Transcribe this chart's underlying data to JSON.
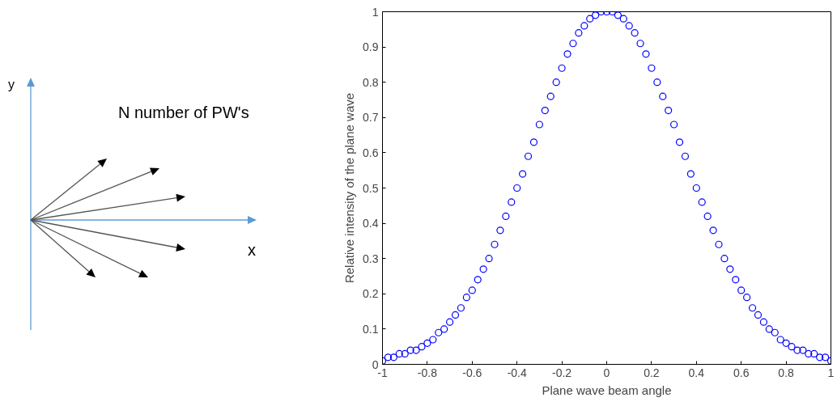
{
  "chart_data": [
    {
      "type": "other",
      "annotations": [
        "y",
        "N number of PW's",
        "x"
      ]
    },
    {
      "type": "scatter",
      "xlabel": "Plane wave beam angle",
      "ylabel": "Relative intensity of the plane wave",
      "marker": "circle",
      "grid": false,
      "xlim": [
        -1,
        1
      ],
      "ylim": [
        0,
        1
      ],
      "xticks": [
        -1,
        -0.8,
        -0.6,
        -0.4,
        -0.2,
        0,
        0.2,
        0.4,
        0.6,
        0.8,
        1
      ],
      "yticks": [
        0,
        0.1,
        0.2,
        0.3,
        0.4,
        0.5,
        0.6,
        0.7,
        0.8,
        0.9,
        1
      ],
      "series": [
        {
          "color": "#0000ff",
          "x": [
            -1,
            -0.975,
            -0.95,
            -0.925,
            -0.9,
            -0.875,
            -0.85,
            -0.825,
            -0.8,
            -0.775,
            -0.75,
            -0.725,
            -0.7,
            -0.675,
            -0.65,
            -0.625,
            -0.6,
            -0.575,
            -0.55,
            -0.525,
            -0.5,
            -0.475,
            -0.45,
            -0.425,
            -0.4,
            -0.375,
            -0.35,
            -0.325,
            -0.3,
            -0.275,
            -0.25,
            -0.225,
            -0.2,
            -0.175,
            -0.15,
            -0.125,
            -0.1,
            -0.075,
            -0.05,
            -0.025,
            0,
            0.025,
            0.05,
            0.075,
            0.1,
            0.125,
            0.15,
            0.175,
            0.2,
            0.225,
            0.25,
            0.275,
            0.3,
            0.325,
            0.35,
            0.375,
            0.4,
            0.425,
            0.45,
            0.475,
            0.5,
            0.525,
            0.55,
            0.575,
            0.6,
            0.625,
            0.65,
            0.675,
            0.7,
            0.725,
            0.75,
            0.775,
            0.8,
            0.825,
            0.85,
            0.875,
            0.9,
            0.925,
            0.95,
            0.975,
            1
          ],
          "values": [
            0.01,
            0.02,
            0.02,
            0.03,
            0.03,
            0.04,
            0.04,
            0.05,
            0.06,
            0.07,
            0.09,
            0.1,
            0.12,
            0.14,
            0.16,
            0.19,
            0.21,
            0.24,
            0.27,
            0.3,
            0.34,
            0.38,
            0.42,
            0.46,
            0.5,
            0.54,
            0.59,
            0.63,
            0.68,
            0.72,
            0.76,
            0.8,
            0.84,
            0.88,
            0.91,
            0.94,
            0.96,
            0.98,
            0.99,
            1,
            1,
            1,
            0.99,
            0.98,
            0.96,
            0.94,
            0.91,
            0.88,
            0.84,
            0.8,
            0.76,
            0.72,
            0.68,
            0.63,
            0.59,
            0.54,
            0.5,
            0.46,
            0.42,
            0.38,
            0.34,
            0.3,
            0.27,
            0.24,
            0.21,
            0.19,
            0.16,
            0.14,
            0.12,
            0.1,
            0.09,
            0.07,
            0.06,
            0.05,
            0.04,
            0.04,
            0.03,
            0.03,
            0.02,
            0.02,
            0.01
          ]
        }
      ]
    }
  ]
}
